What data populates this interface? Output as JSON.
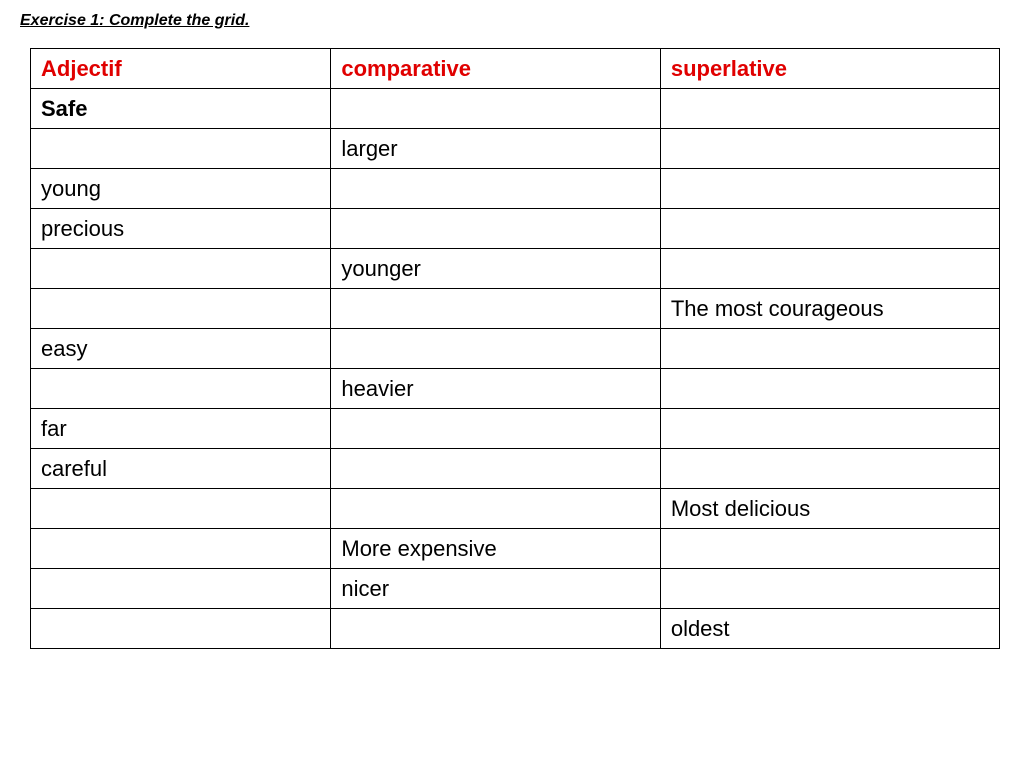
{
  "title": "Exercise 1: Complete the grid.",
  "colors": {
    "header_text": "#e00000",
    "border": "#000000",
    "background": "#ffffff",
    "text": "#000000"
  },
  "typography": {
    "title_fontsize": 16,
    "cell_fontsize": 22,
    "font_family": "Arial"
  },
  "table": {
    "columns": [
      "Adjectif",
      "comparative",
      "superlative"
    ],
    "column_widths_pct": [
      31,
      34,
      35
    ],
    "rows": [
      {
        "adjectif": "Safe",
        "comparative": "",
        "superlative": "",
        "bold": [
          true,
          false,
          false
        ]
      },
      {
        "adjectif": "",
        "comparative": "larger",
        "superlative": "",
        "bold": [
          false,
          false,
          false
        ]
      },
      {
        "adjectif": "young",
        "comparative": "",
        "superlative": "",
        "bold": [
          false,
          false,
          false
        ]
      },
      {
        "adjectif": "precious",
        "comparative": "",
        "superlative": "",
        "bold": [
          false,
          false,
          false
        ]
      },
      {
        "adjectif": "",
        "comparative": "younger",
        "superlative": "",
        "bold": [
          false,
          false,
          false
        ]
      },
      {
        "adjectif": "",
        "comparative": "",
        "superlative": "The most courageous",
        "bold": [
          false,
          false,
          false
        ]
      },
      {
        "adjectif": "easy",
        "comparative": "",
        "superlative": "",
        "bold": [
          false,
          false,
          false
        ]
      },
      {
        "adjectif": "",
        "comparative": "heavier",
        "superlative": "",
        "bold": [
          false,
          false,
          false
        ]
      },
      {
        "adjectif": "far",
        "comparative": "",
        "superlative": "",
        "bold": [
          false,
          false,
          false
        ]
      },
      {
        "adjectif": "careful",
        "comparative": "",
        "superlative": "",
        "bold": [
          false,
          false,
          false
        ]
      },
      {
        "adjectif": "",
        "comparative": "",
        "superlative": "Most delicious",
        "bold": [
          false,
          false,
          false
        ]
      },
      {
        "adjectif": "",
        "comparative": "More expensive",
        "superlative": "",
        "bold": [
          false,
          false,
          false
        ]
      },
      {
        "adjectif": "",
        "comparative": "nicer",
        "superlative": "",
        "bold": [
          false,
          false,
          false
        ]
      },
      {
        "adjectif": "",
        "comparative": "",
        "superlative": "oldest",
        "bold": [
          false,
          false,
          false
        ]
      }
    ]
  }
}
